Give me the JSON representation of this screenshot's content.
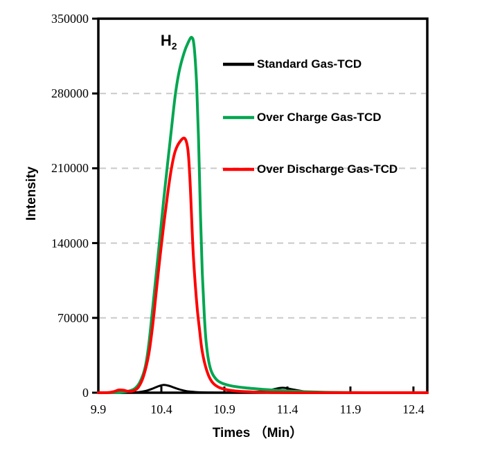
{
  "chart_data": {
    "type": "line",
    "title": "",
    "xlabel": "Times （Min）",
    "ylabel": "Intensity",
    "xlim": [
      9.9,
      12.51
    ],
    "ylim": [
      0,
      350000
    ],
    "x_ticks": [
      9.9,
      10.4,
      10.9,
      11.4,
      11.9,
      12.4
    ],
    "y_ticks": [
      0,
      70000,
      140000,
      210000,
      280000,
      350000
    ],
    "grid": {
      "y_values": [
        70000,
        140000,
        210000,
        280000
      ],
      "color": "#c9c9c9",
      "style": "dashed"
    },
    "annotation": {
      "text": "H",
      "subscript": "2",
      "x": 10.405,
      "y": 334000
    },
    "legend": {
      "position": "inside-top-right",
      "items": [
        {
          "label": "Standard Gas-TCD",
          "color": "#000000"
        },
        {
          "label": "Over Charge Gas-TCD",
          "color": "#00A650"
        },
        {
          "label": "Over Discharge Gas-TCD",
          "color": "#FF0000"
        }
      ]
    },
    "series": [
      {
        "name": "Standard Gas-TCD",
        "color": "#000000",
        "width": 3,
        "points": [
          [
            9.9,
            0
          ],
          [
            10.05,
            0
          ],
          [
            10.15,
            100
          ],
          [
            10.22,
            600
          ],
          [
            10.28,
            1800
          ],
          [
            10.33,
            3800
          ],
          [
            10.38,
            6200
          ],
          [
            10.42,
            7300
          ],
          [
            10.46,
            6500
          ],
          [
            10.51,
            4400
          ],
          [
            10.56,
            2500
          ],
          [
            10.62,
            1100
          ],
          [
            10.7,
            400
          ],
          [
            10.8,
            150
          ],
          [
            10.95,
            100
          ],
          [
            11.08,
            300
          ],
          [
            11.18,
            1100
          ],
          [
            11.27,
            2700
          ],
          [
            11.36,
            4600
          ],
          [
            11.45,
            2900
          ],
          [
            11.53,
            1300
          ],
          [
            11.62,
            450
          ],
          [
            11.72,
            120
          ],
          [
            11.85,
            0
          ],
          [
            12.1,
            0
          ],
          [
            12.51,
            0
          ]
        ]
      },
      {
        "name": "Over Charge Gas-TCD",
        "color": "#00A650",
        "width": 4,
        "points": [
          [
            9.9,
            0
          ],
          [
            10.0,
            100
          ],
          [
            10.08,
            500
          ],
          [
            10.14,
            1500
          ],
          [
            10.19,
            4000
          ],
          [
            10.23,
            10000
          ],
          [
            10.27,
            23000
          ],
          [
            10.3,
            45000
          ],
          [
            10.33,
            78000
          ],
          [
            10.36,
            112000
          ],
          [
            10.39,
            147000
          ],
          [
            10.42,
            182000
          ],
          [
            10.45,
            215000
          ],
          [
            10.48,
            247000
          ],
          [
            10.51,
            278000
          ],
          [
            10.54,
            300000
          ],
          [
            10.58,
            318000
          ],
          [
            10.61,
            327000
          ],
          [
            10.64,
            332500
          ],
          [
            10.66,
            324000
          ],
          [
            10.68,
            288000
          ],
          [
            10.695,
            237000
          ],
          [
            10.71,
            168000
          ],
          [
            10.725,
            112000
          ],
          [
            10.74,
            74000
          ],
          [
            10.755,
            48000
          ],
          [
            10.775,
            30000
          ],
          [
            10.8,
            19000
          ],
          [
            10.84,
            12000
          ],
          [
            10.89,
            8500
          ],
          [
            10.96,
            6300
          ],
          [
            11.05,
            4800
          ],
          [
            11.2,
            3200
          ],
          [
            11.35,
            2000
          ],
          [
            11.5,
            1100
          ],
          [
            11.7,
            400
          ],
          [
            11.95,
            80
          ],
          [
            12.2,
            0
          ],
          [
            12.51,
            0
          ]
        ]
      },
      {
        "name": "Over Discharge Gas-TCD",
        "color": "#FF0000",
        "width": 4,
        "points": [
          [
            9.9,
            0
          ],
          [
            9.97,
            0
          ],
          [
            10.02,
            900
          ],
          [
            10.06,
            2500
          ],
          [
            10.1,
            2300
          ],
          [
            10.14,
            1300
          ],
          [
            10.18,
            1800
          ],
          [
            10.22,
            5500
          ],
          [
            10.26,
            16000
          ],
          [
            10.3,
            36000
          ],
          [
            10.33,
            62000
          ],
          [
            10.36,
            95000
          ],
          [
            10.39,
            128000
          ],
          [
            10.42,
            158000
          ],
          [
            10.45,
            186000
          ],
          [
            10.48,
            210000
          ],
          [
            10.51,
            226000
          ],
          [
            10.545,
            234500
          ],
          [
            10.585,
            238000
          ],
          [
            10.61,
            228000
          ],
          [
            10.625,
            204000
          ],
          [
            10.638,
            170000
          ],
          [
            10.652,
            132000
          ],
          [
            10.67,
            100000
          ],
          [
            10.685,
            78000
          ],
          [
            10.7,
            62000
          ],
          [
            10.72,
            42000
          ],
          [
            10.745,
            27000
          ],
          [
            10.775,
            16000
          ],
          [
            10.81,
            9000
          ],
          [
            10.86,
            4800
          ],
          [
            10.93,
            2500
          ],
          [
            11.02,
            1300
          ],
          [
            11.15,
            600
          ],
          [
            11.3,
            200
          ],
          [
            11.5,
            0
          ],
          [
            12.51,
            0
          ]
        ]
      }
    ]
  }
}
